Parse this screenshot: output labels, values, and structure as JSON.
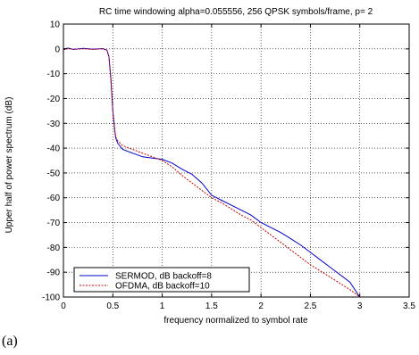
{
  "caption": "(a)",
  "chart_data": {
    "type": "line",
    "title": "RC time windowing alpha=0.055556,  256 QPSK symbols/frame,  p= 2",
    "xlabel": "frequency normalized to symbol rate",
    "ylabel": "Upper half of power spectrum (dB)",
    "xlim": [
      0,
      3.5
    ],
    "ylim": [
      -100,
      10
    ],
    "xticks": [
      0,
      0.5,
      1,
      1.5,
      2,
      2.5,
      3,
      3.5
    ],
    "xtick_labels": [
      "0",
      "0.5",
      "1",
      "1.5",
      "2",
      "2.5",
      "3",
      "3.5"
    ],
    "yticks": [
      10,
      0,
      -10,
      -20,
      -30,
      -40,
      -50,
      -60,
      -70,
      -80,
      -90,
      -100
    ],
    "ytick_labels": [
      "10",
      "0",
      "-10",
      "-20",
      "-30",
      "-40",
      "-50",
      "-60",
      "-70",
      "-80",
      "-90",
      "-100"
    ],
    "grid": true,
    "legend_position": "bottom-left",
    "series": [
      {
        "name": "SERMOD, dB backoff=8",
        "color": "#0000cc",
        "style": "solid",
        "x": [
          0,
          0.05,
          0.1,
          0.2,
          0.3,
          0.4,
          0.44,
          0.46,
          0.48,
          0.5,
          0.52,
          0.53,
          0.55,
          0.6,
          0.7,
          0.8,
          0.9,
          1.0,
          1.1,
          1.2,
          1.3,
          1.4,
          1.5,
          1.6,
          1.7,
          1.8,
          1.9,
          2.0,
          2.1,
          2.2,
          2.3,
          2.4,
          2.5,
          2.6,
          2.7,
          2.8,
          2.9,
          3.0
        ],
        "y": [
          0,
          0.3,
          -0.2,
          0.2,
          -0.1,
          0.1,
          -0.5,
          -3,
          -12,
          -25,
          -33,
          -36,
          -38,
          -40.5,
          -42,
          -43.5,
          -44,
          -44.5,
          -46,
          -48.5,
          -50.5,
          -54,
          -59,
          -61,
          -63,
          -65,
          -67,
          -70,
          -72,
          -74,
          -76.5,
          -79,
          -82,
          -85,
          -88,
          -91,
          -94,
          -100
        ]
      },
      {
        "name": "OFDMA, dB backoff=10",
        "color": "#cc0000",
        "style": "dotted",
        "x": [
          0,
          0.05,
          0.1,
          0.2,
          0.3,
          0.4,
          0.44,
          0.46,
          0.48,
          0.5,
          0.52,
          0.53,
          0.55,
          0.6,
          0.7,
          0.8,
          0.9,
          1.0,
          1.1,
          1.2,
          1.3,
          1.4,
          1.5,
          1.6,
          1.7,
          1.8,
          1.9,
          2.0,
          2.1,
          2.2,
          2.3,
          2.4,
          2.5,
          2.6,
          2.7,
          2.8,
          2.9,
          3.0
        ],
        "y": [
          -0.3,
          0.1,
          -0.2,
          0,
          -0.2,
          0,
          -0.6,
          -3,
          -12,
          -25,
          -33,
          -35.5,
          -37,
          -39,
          -40.5,
          -42,
          -43.5,
          -45,
          -47.5,
          -51,
          -54,
          -57,
          -60,
          -62,
          -64.5,
          -67,
          -69,
          -72,
          -75,
          -78,
          -81,
          -84,
          -87,
          -89.5,
          -92,
          -94.5,
          -97,
          -100
        ]
      }
    ]
  }
}
